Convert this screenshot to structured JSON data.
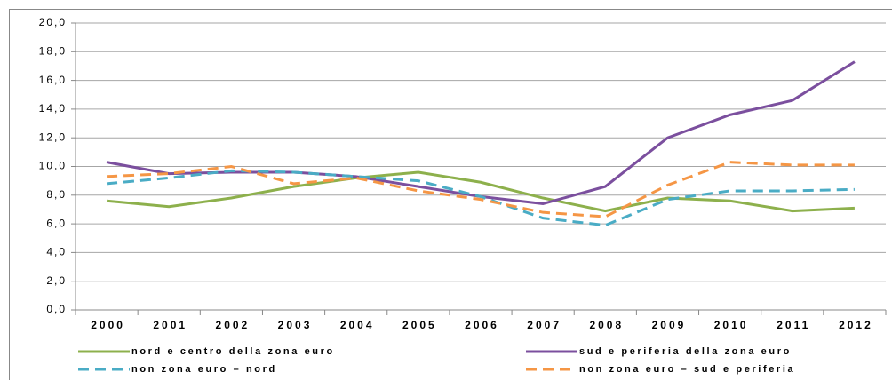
{
  "chart_data": {
    "type": "line",
    "categories": [
      "2000",
      "2001",
      "2002",
      "2003",
      "2004",
      "2005",
      "2006",
      "2007",
      "2008",
      "2009",
      "2010",
      "2011",
      "2012"
    ],
    "series": [
      {
        "name": "nord e centro della zona euro",
        "color": "#8db04c",
        "dash": false,
        "values": [
          7.6,
          7.2,
          7.8,
          8.6,
          9.2,
          9.6,
          8.9,
          7.8,
          6.9,
          7.8,
          7.6,
          6.9,
          7.1
        ]
      },
      {
        "name": "sud e periferia della zona euro",
        "color": "#7b4f9e",
        "dash": false,
        "values": [
          10.3,
          9.5,
          9.6,
          9.6,
          9.3,
          8.6,
          7.9,
          7.4,
          8.6,
          12.0,
          13.6,
          14.6,
          17.3
        ]
      },
      {
        "name": "non zona euro – nord",
        "color": "#4aacc5",
        "dash": true,
        "values": [
          8.8,
          9.2,
          9.7,
          9.6,
          9.3,
          9.0,
          7.9,
          6.4,
          5.9,
          7.7,
          8.3,
          8.3,
          8.4
        ]
      },
      {
        "name": "non zona euro – sud e periferia",
        "color": "#f59645",
        "dash": true,
        "values": [
          9.3,
          9.5,
          10.0,
          8.8,
          9.2,
          8.3,
          7.7,
          6.8,
          6.5,
          8.7,
          10.3,
          10.1,
          10.1
        ]
      }
    ],
    "ylim": [
      0,
      20
    ],
    "yticks": [
      {
        "value": 0,
        "label": "0,0"
      },
      {
        "value": 2,
        "label": "2,0"
      },
      {
        "value": 4,
        "label": "4,0"
      },
      {
        "value": 6,
        "label": "6,0"
      },
      {
        "value": 8,
        "label": "8,0"
      },
      {
        "value": 10,
        "label": "10,0"
      },
      {
        "value": 12,
        "label": "12,0"
      },
      {
        "value": 14,
        "label": "14,0"
      },
      {
        "value": 16,
        "label": "16,0"
      },
      {
        "value": 18,
        "label": "18,0"
      },
      {
        "value": 20,
        "label": "20,0"
      }
    ],
    "grid": true
  }
}
